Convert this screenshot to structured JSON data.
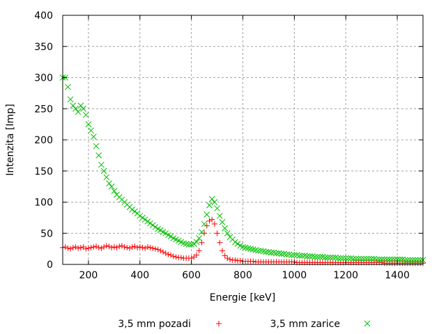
{
  "chart_data": {
    "type": "scatter",
    "title": "",
    "xlabel": "Energie [keV]",
    "ylabel": "Intenzita [Imp]",
    "xlim": [
      100,
      1500
    ],
    "ylim": [
      0,
      400
    ],
    "xticks": [
      200,
      400,
      600,
      800,
      1000,
      1200,
      1400
    ],
    "yticks": [
      0,
      50,
      100,
      150,
      200,
      250,
      300,
      350,
      400
    ],
    "grid": true,
    "legend_placement": "bottom",
    "x": [
      100,
      110,
      120,
      130,
      140,
      150,
      160,
      170,
      180,
      190,
      200,
      210,
      220,
      230,
      240,
      250,
      260,
      270,
      280,
      290,
      300,
      310,
      320,
      330,
      340,
      350,
      360,
      370,
      380,
      390,
      400,
      410,
      420,
      430,
      440,
      450,
      460,
      470,
      480,
      490,
      500,
      510,
      520,
      530,
      540,
      550,
      560,
      570,
      580,
      590,
      600,
      610,
      620,
      630,
      640,
      650,
      660,
      670,
      680,
      690,
      700,
      710,
      720,
      730,
      740,
      750,
      760,
      770,
      780,
      790,
      800,
      810,
      820,
      830,
      840,
      850,
      860,
      870,
      880,
      890,
      900,
      910,
      920,
      930,
      940,
      950,
      960,
      970,
      980,
      990,
      1000,
      1010,
      1020,
      1030,
      1040,
      1050,
      1060,
      1070,
      1080,
      1090,
      1100,
      1110,
      1120,
      1130,
      1140,
      1150,
      1160,
      1170,
      1180,
      1190,
      1200,
      1210,
      1220,
      1230,
      1240,
      1250,
      1260,
      1270,
      1280,
      1290,
      1300,
      1310,
      1320,
      1330,
      1340,
      1350,
      1360,
      1370,
      1380,
      1390,
      1400,
      1410,
      1420,
      1430,
      1440,
      1450,
      1460,
      1470,
      1480,
      1490,
      1500
    ],
    "series": [
      {
        "name": "3,5 mm pozadi",
        "marker": "plus",
        "color": "#ff0000",
        "values": [
          27,
          28,
          26,
          25,
          27,
          28,
          26,
          27,
          28,
          25,
          26,
          27,
          28,
          29,
          27,
          26,
          28,
          30,
          29,
          27,
          28,
          27,
          29,
          30,
          28,
          27,
          26,
          28,
          29,
          27,
          28,
          27,
          26,
          28,
          27,
          26,
          25,
          24,
          22,
          20,
          18,
          16,
          15,
          13,
          12,
          11,
          11,
          10,
          10,
          10,
          10,
          12,
          15,
          22,
          35,
          50,
          62,
          70,
          72,
          65,
          50,
          35,
          22,
          14,
          10,
          8,
          7,
          7,
          6,
          6,
          5,
          5,
          5,
          5,
          5,
          4,
          4,
          4,
          4,
          4,
          4,
          4,
          4,
          4,
          4,
          4,
          4,
          4,
          4,
          4,
          4,
          3,
          3,
          3,
          3,
          3,
          3,
          3,
          3,
          3,
          3,
          3,
          3,
          3,
          3,
          3,
          3,
          3,
          3,
          3,
          3,
          3,
          3,
          3,
          3,
          3,
          3,
          3,
          3,
          3,
          3,
          3,
          3,
          3,
          3,
          2,
          2,
          2,
          2,
          2,
          2,
          2,
          2,
          2,
          2,
          2,
          2,
          2,
          2,
          2,
          2
        ]
      },
      {
        "name": "3,5 mm zarice",
        "marker": "cross",
        "color": "#00c000",
        "values": [
          300,
          300,
          285,
          265,
          255,
          250,
          245,
          255,
          250,
          240,
          225,
          215,
          205,
          190,
          175,
          160,
          150,
          140,
          130,
          125,
          118,
          112,
          108,
          104,
          100,
          96,
          92,
          88,
          85,
          82,
          78,
          75,
          72,
          69,
          66,
          63,
          60,
          57,
          55,
          52,
          50,
          47,
          45,
          42,
          40,
          38,
          36,
          34,
          33,
          32,
          32,
          33,
          36,
          42,
          52,
          65,
          80,
          95,
          105,
          100,
          90,
          78,
          68,
          58,
          50,
          44,
          40,
          36,
          33,
          30,
          28,
          27,
          26,
          25,
          24,
          23,
          22,
          22,
          21,
          20,
          20,
          19,
          19,
          18,
          18,
          17,
          17,
          16,
          16,
          15,
          15,
          15,
          14,
          14,
          14,
          13,
          13,
          13,
          12,
          12,
          12,
          12,
          11,
          11,
          11,
          11,
          11,
          10,
          10,
          10,
          10,
          10,
          10,
          9,
          9,
          9,
          9,
          9,
          9,
          9,
          9,
          9,
          8,
          8,
          8,
          8,
          8,
          8,
          8,
          8,
          8,
          8,
          8,
          7,
          7,
          7,
          7,
          7,
          7,
          7,
          7
        ]
      }
    ]
  }
}
